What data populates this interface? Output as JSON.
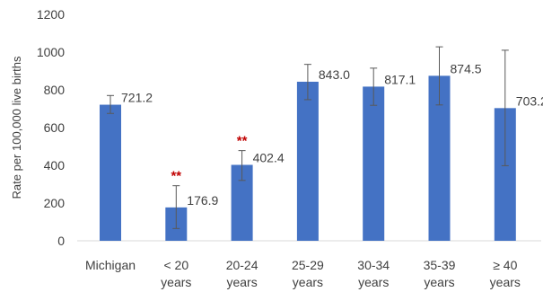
{
  "chart_data": {
    "type": "bar",
    "ylabel": "Rate per 100,000 live births",
    "ylim": [
      0,
      1200
    ],
    "yticks": [
      "0",
      "200",
      "400",
      "600",
      "800",
      "1000",
      "1200"
    ],
    "ytick_values": [
      0,
      200,
      400,
      600,
      800,
      1000,
      1200
    ],
    "categories": [
      [
        "Michigan"
      ],
      [
        "< 20",
        "years"
      ],
      [
        "20-24",
        "years"
      ],
      [
        "25-29",
        "years"
      ],
      [
        "30-34",
        "years"
      ],
      [
        "35-39",
        "years"
      ],
      [
        "≥ 40",
        "years"
      ]
    ],
    "values": [
      721.2,
      176.9,
      402.4,
      843.0,
      817.1,
      874.5,
      703.2
    ],
    "value_labels": [
      "721.2",
      "176.9",
      "402.4",
      "843.0",
      "817.1",
      "874.5",
      "703.2"
    ],
    "error_low": [
      675,
      65,
      320,
      748,
      718,
      720,
      398
    ],
    "error_high": [
      770,
      292,
      478,
      935,
      915,
      1028,
      1010
    ],
    "significance": [
      "",
      "**",
      "**",
      "",
      "",
      "",
      ""
    ],
    "grid": false,
    "legend": "none"
  },
  "colors": {
    "bar": "#4472C4",
    "error_bar": "#595959",
    "significance": "#C00000",
    "axis": "#D9D9D9",
    "text": "#404040"
  }
}
